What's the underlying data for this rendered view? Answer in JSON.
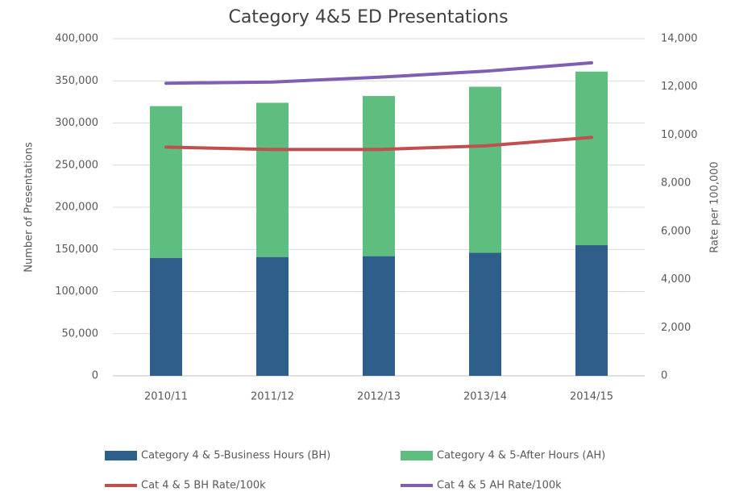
{
  "chart_data": {
    "type": "bar",
    "title": "Category 4&5 ED Presentations",
    "y_label": "Number  of Presentations",
    "y2_label": "Rate per 100,000",
    "categories": [
      "2010/11",
      "2011/12",
      "2012/13",
      "2013/14",
      "2014/15"
    ],
    "stacked": true,
    "series": [
      {
        "name": "Category 4 & 5-Business Hours (BH)",
        "type": "bar",
        "color": "#2e5f8a",
        "values": [
          140000,
          141000,
          142000,
          146000,
          155000
        ]
      },
      {
        "name": "Category 4 & 5-After Hours (AH)",
        "type": "bar",
        "color": "#5dbe80",
        "values": [
          180000,
          183000,
          190000,
          197000,
          206000
        ]
      },
      {
        "name": "Cat 4 & 5 BH Rate/100k",
        "type": "line",
        "axis": "y2",
        "color": "#c0504d",
        "values": [
          9500,
          9400,
          9400,
          9550,
          9900
        ]
      },
      {
        "name": "Cat 4 & 5 AH Rate/100k",
        "type": "line",
        "axis": "y2",
        "color": "#7f5fb0",
        "values": [
          12150,
          12200,
          12400,
          12650,
          13000
        ]
      }
    ],
    "ylim": [
      0,
      400000
    ],
    "yticks": [
      0,
      {
        "value": 50000,
        "label": "50,000"
      },
      {
        "value": 100000,
        "label": "100,000"
      },
      {
        "value": 150000,
        "label": "150,000"
      },
      {
        "value": 200000,
        "label": "200,000"
      },
      {
        "value": 250000,
        "label": "250,000"
      },
      {
        "value": 300000,
        "label": "300,000"
      },
      {
        "value": 350000,
        "label": "350,000"
      },
      {
        "value": 400000,
        "label": "400,000"
      }
    ],
    "y2lim": [
      0,
      14000
    ],
    "y2ticks": [
      0,
      {
        "value": 2000,
        "label": "2,000"
      },
      {
        "value": 4000,
        "label": "4,000"
      },
      {
        "value": 6000,
        "label": "6,000"
      },
      {
        "value": 8000,
        "label": "8,000"
      },
      {
        "value": 10000,
        "label": "10,000"
      },
      {
        "value": 12000,
        "label": "12,000"
      },
      {
        "value": 14000,
        "label": "14,000"
      }
    ],
    "grid": true,
    "legend": "bottom"
  }
}
